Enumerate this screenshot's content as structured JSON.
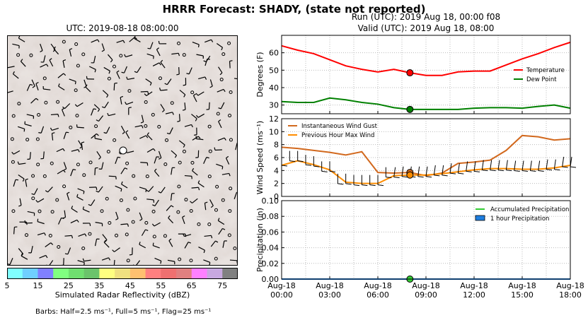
{
  "figure": {
    "suptitle": "HRRR Forecast: SHADY, (state not reported)",
    "map_title": "UTC: 2019-08-18 08:00:00",
    "run_line": "Run (UTC): 2019 Aug 18, 00:00 f08",
    "valid_line": "Valid (UTC): 2019 Aug 18, 08:00",
    "colorbar_label": "Simulated Radar Reflectivity (dBZ)",
    "colorbar_ticks": [
      "5",
      "15",
      "25",
      "35",
      "45",
      "55",
      "65",
      "75"
    ],
    "colorbar_colors": [
      "#80ffff",
      "#6fcfff",
      "#8080ff",
      "#80ff80",
      "#70df70",
      "#6bc36b",
      "#ffff80",
      "#f0e080",
      "#ffc070",
      "#ff8080",
      "#ef7070",
      "#e08080",
      "#ff80ff",
      "#c8a8e0",
      "#808080"
    ],
    "barbs_note": "Barbs: Half=2.5 ms⁻¹, Full=5 ms⁻¹, Flag=25 ms⁻¹"
  },
  "chart_data": [
    {
      "type": "line",
      "panel": "temperature",
      "ylabel": "Degrees (F)",
      "ylim": [
        25,
        70
      ],
      "yticks": [
        "30",
        "40",
        "50",
        "60"
      ],
      "x_hours": [
        0,
        1,
        2,
        3,
        4,
        5,
        6,
        7,
        8,
        9,
        10,
        11,
        12,
        13,
        14,
        15,
        16,
        17,
        18
      ],
      "series": [
        {
          "name": "Temperature",
          "color": "#ff0000",
          "values": [
            64,
            61.5,
            59.5,
            56,
            52.5,
            50.5,
            49,
            50.5,
            48.5,
            47,
            47,
            49,
            49.5,
            49.5,
            53,
            56.5,
            59.5,
            63,
            66
          ]
        },
        {
          "name": "Dew Point",
          "color": "#008000",
          "values": [
            32,
            31.5,
            31.5,
            34,
            33,
            31.5,
            30.5,
            28.5,
            27.5,
            27.5,
            27.5,
            27.5,
            28.2,
            28.5,
            28.5,
            28.2,
            29.2,
            30,
            28.2
          ]
        }
      ],
      "markers": [
        {
          "series": "Temperature",
          "x_hour": 8,
          "value": 48.5
        },
        {
          "series": "Dew Point",
          "x_hour": 8,
          "value": 27.5
        }
      ],
      "grid": true,
      "legend": "right"
    },
    {
      "type": "line",
      "panel": "wind",
      "ylabel": "Wind Speed (ms⁻¹)",
      "ylim": [
        0,
        12
      ],
      "yticks": [
        "0",
        "2",
        "4",
        "6",
        "8",
        "10",
        "12"
      ],
      "x_hours": [
        0,
        1,
        2,
        3,
        4,
        5,
        6,
        7,
        8,
        9,
        10,
        11,
        12,
        13,
        14,
        15,
        16,
        17,
        18
      ],
      "series": [
        {
          "name": "Instantaneous Wind Gust",
          "color": "#d2691e",
          "values": [
            7.6,
            7.4,
            7.1,
            6.8,
            6.4,
            6.9,
            3.7,
            3.6,
            3.7,
            3.2,
            3.6,
            5.1,
            5.3,
            5.6,
            7.1,
            9.4,
            9.2,
            8.7,
            8.9
          ]
        },
        {
          "name": "Previous Hour Max Wind",
          "color": "#ff8c00",
          "values": [
            4.8,
            5.5,
            4.9,
            4.1,
            2.2,
            2.0,
            2.0,
            3.2,
            3.3,
            3.3,
            3.5,
            3.8,
            4.1,
            4.3,
            4.3,
            4.2,
            4.2,
            4.4,
            4.8
          ]
        }
      ],
      "markers": [
        {
          "series": "Instantaneous Wind Gust",
          "x_hour": 8,
          "value": 3.7
        },
        {
          "series": "Previous Hour Max Wind",
          "x_hour": 8,
          "value": 3.3
        }
      ],
      "grid": true,
      "legend": "top-left"
    },
    {
      "type": "line",
      "panel": "precipitation",
      "ylabel": "Precipitation (in)",
      "ylim": [
        0,
        0.1
      ],
      "yticks": [
        "0.00",
        "0.02",
        "0.04",
        "0.06",
        "0.08",
        "0.10"
      ],
      "x_hours": [
        0,
        1,
        2,
        3,
        4,
        5,
        6,
        7,
        8,
        9,
        10,
        11,
        12,
        13,
        14,
        15,
        16,
        17,
        18
      ],
      "series": [
        {
          "name": "Accumulated Precipitation",
          "color": "#33cc33",
          "values": [
            0,
            0,
            0,
            0,
            0,
            0,
            0,
            0,
            0,
            0,
            0,
            0,
            0,
            0,
            0,
            0,
            0,
            0,
            0
          ]
        },
        {
          "name": "1 hour Precipitation",
          "color": "#1e7ee0",
          "values": [
            0,
            0,
            0,
            0,
            0,
            0,
            0,
            0,
            0,
            0,
            0,
            0,
            0,
            0,
            0,
            0,
            0,
            0,
            0
          ]
        }
      ],
      "markers": [
        {
          "series": "Accumulated Precipitation",
          "x_hour": 8,
          "value": 0
        }
      ],
      "xtick_hours": [
        0,
        3,
        6,
        9,
        12,
        15,
        18
      ],
      "xtick_labels": [
        [
          "Aug-18",
          "00:00"
        ],
        [
          "Aug-18",
          "03:00"
        ],
        [
          "Aug-18",
          "06:00"
        ],
        [
          "Aug-18",
          "09:00"
        ],
        [
          "Aug-18",
          "12:00"
        ],
        [
          "Aug-18",
          "15:00"
        ],
        [
          "Aug-18",
          "18:00"
        ]
      ],
      "grid": true,
      "legend": "top-right"
    }
  ]
}
